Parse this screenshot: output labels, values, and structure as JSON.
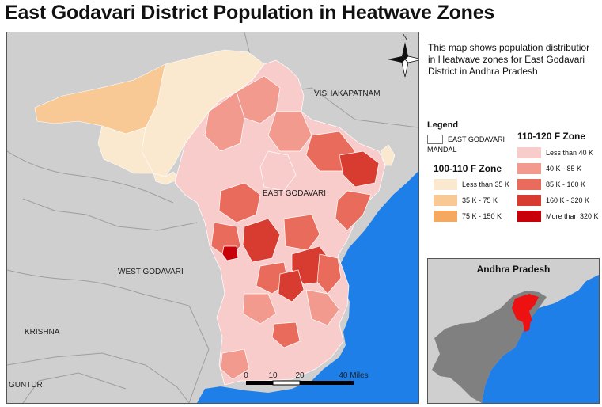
{
  "title": "East Godavari District Population in Heatwave Zones",
  "description": "This map shows population distributior\nin Heatwave zones for East Godavari\nDistrict in Andhra Pradesh",
  "map": {
    "place_labels": {
      "vishakapatnam": "VISHAKAPATNAM",
      "east_godavari": "EAST GODAVARI",
      "west_godavari": "WEST GODAVARI",
      "krishna": "KRISHNA",
      "guntur": "GUNTUR"
    },
    "north_arrow": "N",
    "scale_bar": {
      "ticks": [
        "0",
        "10",
        "20",
        "40 Miles"
      ]
    },
    "colors": {
      "land": "#cfcfcf",
      "sea": "#1f7fe8",
      "boundary": "#9a9a9a"
    }
  },
  "legend": {
    "title": "Legend",
    "boundary_label_line1": "EAST GODAVARI",
    "boundary_label_line2": "MANDAL",
    "zone_100_110": {
      "title": "100-110 F Zone",
      "classes": [
        {
          "label": "Less than 35 K",
          "color": "#fbe9cf"
        },
        {
          "label": "35 K - 75 K",
          "color": "#f8c995"
        },
        {
          "label": "75 K - 150 K",
          "color": "#f5a85f"
        }
      ]
    },
    "zone_110_120": {
      "title": "110-120 F Zone",
      "classes": [
        {
          "label": "Less than 40 K",
          "color": "#f9cccc"
        },
        {
          "label": "40 K - 85 K",
          "color": "#f29a8d"
        },
        {
          "label": "85 K - 160 K",
          "color": "#e96b5c"
        },
        {
          "label": "160 K - 320 K",
          "color": "#d83c30"
        },
        {
          "label": "More than 320 K",
          "color": "#c8000a"
        }
      ]
    }
  },
  "inset": {
    "title": "Andhra Pradesh",
    "colors": {
      "state": "#808080",
      "highlight": "#ee1111",
      "sea": "#1f7fe8"
    }
  }
}
